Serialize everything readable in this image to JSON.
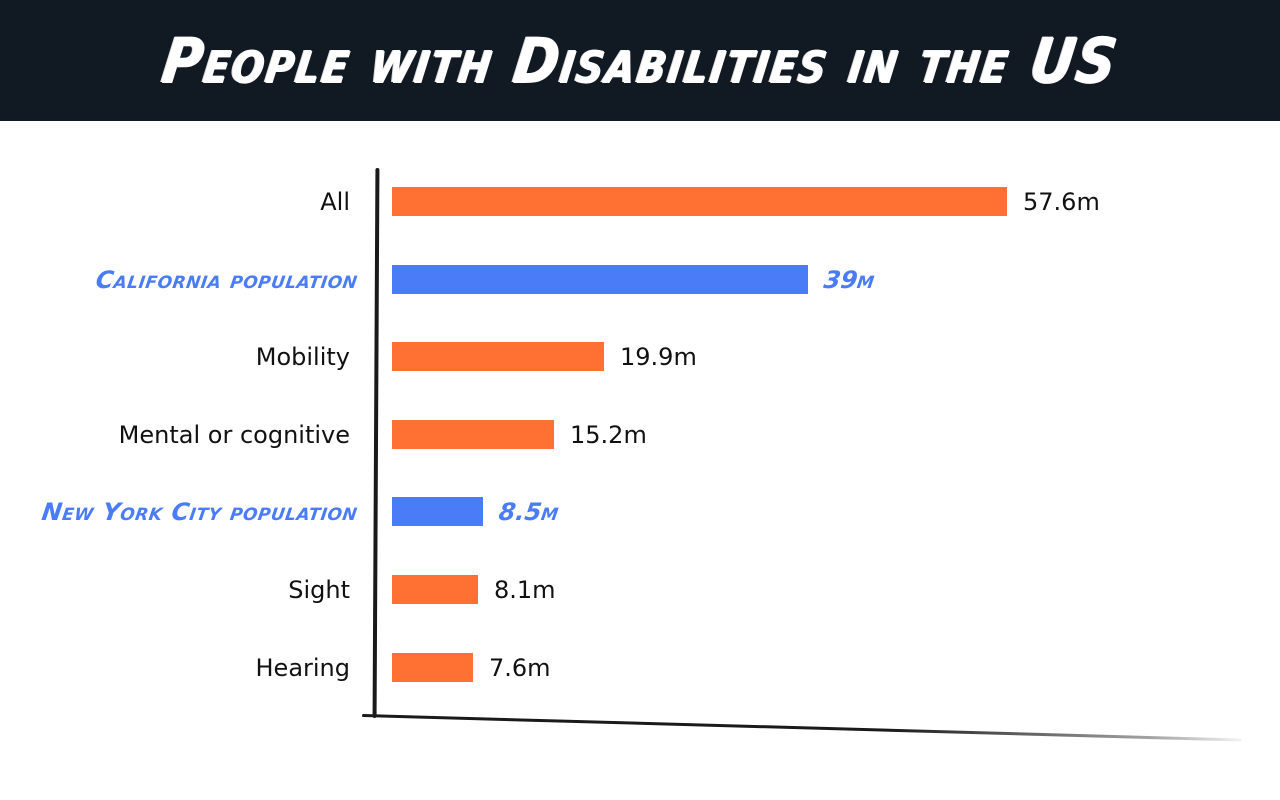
{
  "title": "People with Disabilities in the US",
  "colors": {
    "category": "#ff7033",
    "population": "#4b7cf7",
    "header_bg": "#111a22"
  },
  "rows": [
    {
      "label": "All",
      "value_label": "57.6m",
      "highlight": false
    },
    {
      "label": "California population",
      "value_label": "39m",
      "highlight": true
    },
    {
      "label": "Mobility",
      "value_label": "19.9m",
      "highlight": false
    },
    {
      "label": "Mental or cognitive",
      "value_label": "15.2m",
      "highlight": false
    },
    {
      "label": "New York City population",
      "value_label": "8.5m",
      "highlight": true
    },
    {
      "label": "Sight",
      "value_label": "8.1m",
      "highlight": false
    },
    {
      "label": "Hearing",
      "value_label": "7.6m",
      "highlight": false
    }
  ],
  "chart_data": {
    "type": "bar",
    "orientation": "horizontal",
    "title": "People with Disabilities in the US",
    "categories": [
      "All",
      "California population",
      "Mobility",
      "Mental or cognitive",
      "New York City population",
      "Sight",
      "Hearing"
    ],
    "values": [
      57.6,
      39,
      19.9,
      15.2,
      8.5,
      8.1,
      7.6
    ],
    "unit": "millions",
    "value_labels": [
      "57.6m",
      "39m",
      "19.9m",
      "15.2m",
      "8.5m",
      "8.1m",
      "7.6m"
    ],
    "bar_colors": [
      "#ff7033",
      "#4b7cf7",
      "#ff7033",
      "#ff7033",
      "#4b7cf7",
      "#ff7033",
      "#ff7033"
    ],
    "highlighted_reference_bars": [
      "California population",
      "New York City population"
    ],
    "xlabel": "",
    "ylabel": "",
    "grid": false,
    "legend": null
  }
}
